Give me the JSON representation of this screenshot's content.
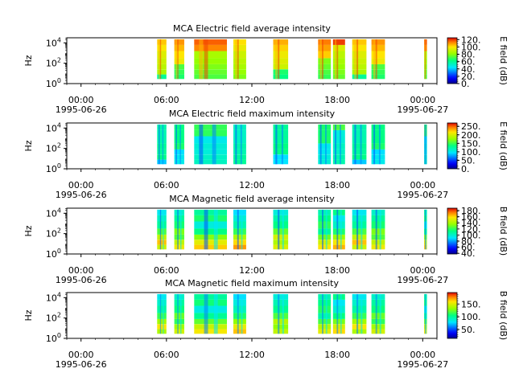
{
  "chart_data": [
    {
      "type": "heatmap",
      "title": "MCA  Electric field average intensity",
      "ylabel": "Hz",
      "y_scale": "log",
      "y_tick_labels": [
        {
          "base": "10",
          "exp": "0"
        },
        {
          "base": "10",
          "exp": "2"
        },
        {
          "base": "10",
          "exp": "4"
        }
      ],
      "x_tick_labels": [
        "00:00",
        "06:00",
        "12:00",
        "18:00",
        "00:00"
      ],
      "x_date_labels": [
        "1995-06-26",
        "",
        "",
        "",
        "1995-06-27"
      ],
      "colorbar": {
        "label": "E field (dB)",
        "ticks": [
          "0.",
          "20.",
          "40.",
          "60.",
          "80.",
          "100.",
          "120."
        ],
        "range": [
          0,
          125
        ]
      },
      "data_windows_hours": [
        [
          5.35,
          6.0
        ],
        [
          6.55,
          7.25
        ],
        [
          7.95,
          10.25
        ],
        [
          10.7,
          11.6
        ],
        [
          13.5,
          14.55
        ],
        [
          16.65,
          17.55
        ],
        [
          17.7,
          18.55
        ],
        [
          19.05,
          20.05
        ],
        [
          20.4,
          21.35
        ],
        [
          24.1,
          24.3
        ]
      ],
      "band_levels": [
        0.55,
        0.6,
        0.65,
        0.7,
        0.75,
        0.82,
        0.88
      ],
      "stripe_sets": [
        [
          0.3,
          0.95
        ],
        [
          0.15,
          0.85
        ]
      ]
    },
    {
      "type": "heatmap",
      "title": "MCA  Electric field maximum intensity",
      "ylabel": "Hz",
      "y_scale": "log",
      "y_tick_labels": [
        {
          "base": "10",
          "exp": "0"
        },
        {
          "base": "10",
          "exp": "2"
        },
        {
          "base": "10",
          "exp": "4"
        }
      ],
      "x_tick_labels": [
        "00:00",
        "06:00",
        "12:00",
        "18:00",
        "00:00"
      ],
      "x_date_labels": [
        "1995-06-26",
        "",
        "",
        "",
        "1995-06-27"
      ],
      "colorbar": {
        "label": "E field (dB)",
        "ticks": [
          "0.",
          "50.",
          "100.",
          "150.",
          "200.",
          "250."
        ],
        "range": [
          0,
          270
        ]
      },
      "data_windows_hours": [
        [
          5.35,
          6.0
        ],
        [
          6.55,
          7.25
        ],
        [
          7.95,
          10.25
        ],
        [
          10.7,
          11.6
        ],
        [
          13.5,
          14.55
        ],
        [
          16.65,
          17.55
        ],
        [
          17.7,
          18.55
        ],
        [
          19.05,
          20.05
        ],
        [
          20.4,
          21.35
        ],
        [
          24.1,
          24.3
        ]
      ],
      "band_levels": [
        0.4,
        0.42,
        0.42,
        0.45,
        0.45,
        0.47,
        0.5
      ],
      "stripe_sets": [
        [
          0.15,
          0.2
        ],
        [
          0.55,
          0.25
        ]
      ]
    },
    {
      "type": "heatmap",
      "title": "MCA  Magnetic field average intensity",
      "ylabel": "Hz",
      "y_scale": "log",
      "y_tick_labels": [
        {
          "base": "10",
          "exp": "0"
        },
        {
          "base": "10",
          "exp": "2"
        },
        {
          "base": "10",
          "exp": "4"
        }
      ],
      "x_tick_labels": [
        "00:00",
        "06:00",
        "12:00",
        "18:00",
        "00:00"
      ],
      "x_date_labels": [
        "1995-06-26",
        "",
        "",
        "",
        "1995-06-27"
      ],
      "colorbar": {
        "label": "B field (dB)",
        "ticks": [
          "40.",
          "60.",
          "80.",
          "100.",
          "120.",
          "140.",
          "160.",
          "180."
        ],
        "range": [
          38,
          188
        ]
      },
      "data_windows_hours": [
        [
          5.35,
          6.0
        ],
        [
          6.55,
          7.25
        ],
        [
          7.95,
          10.25
        ],
        [
          10.7,
          11.6
        ],
        [
          13.5,
          14.55
        ],
        [
          16.65,
          17.55
        ],
        [
          17.7,
          18.55
        ],
        [
          19.05,
          20.05
        ],
        [
          20.4,
          21.35
        ],
        [
          24.1,
          24.3
        ]
      ],
      "band_levels": [
        0.8,
        0.76,
        0.66,
        0.55,
        0.47,
        0.45,
        0.42
      ],
      "stripe_sets": [
        [
          0.3,
          0.2
        ],
        [
          0.6,
          0.35
        ]
      ]
    },
    {
      "type": "heatmap",
      "title": "MCA  Magnetic field maximum intensity",
      "ylabel": "Hz",
      "y_scale": "log",
      "y_tick_labels": [
        {
          "base": "10",
          "exp": "0"
        },
        {
          "base": "10",
          "exp": "2"
        },
        {
          "base": "10",
          "exp": "4"
        }
      ],
      "x_tick_labels": [
        "00:00",
        "06:00",
        "12:00",
        "18:00",
        "00:00"
      ],
      "x_date_labels": [
        "1995-06-26",
        "",
        "",
        "",
        "1995-06-27"
      ],
      "colorbar": {
        "label": "B field (dB)",
        "ticks": [
          "50.",
          "100.",
          "150."
        ],
        "range": [
          15,
          195
        ]
      },
      "data_windows_hours": [
        [
          5.35,
          6.0
        ],
        [
          6.55,
          7.25
        ],
        [
          7.95,
          10.25
        ],
        [
          10.7,
          11.6
        ],
        [
          13.5,
          14.55
        ],
        [
          16.65,
          17.55
        ],
        [
          17.7,
          18.55
        ],
        [
          19.05,
          20.05
        ],
        [
          20.4,
          21.35
        ],
        [
          24.1,
          24.3
        ]
      ],
      "band_levels": [
        0.76,
        0.72,
        0.62,
        0.53,
        0.46,
        0.44,
        0.42
      ],
      "stripe_sets": [
        [
          0.3,
          0.25
        ],
        [
          0.6,
          0.35
        ]
      ]
    }
  ],
  "x_axis": {
    "range_hours": [
      -1,
      25
    ],
    "major_tick_hours": [
      0,
      6,
      12,
      18,
      24
    ],
    "minor_step_hours": 1
  },
  "y_axis": {
    "range_log10": [
      0,
      4.5
    ]
  }
}
